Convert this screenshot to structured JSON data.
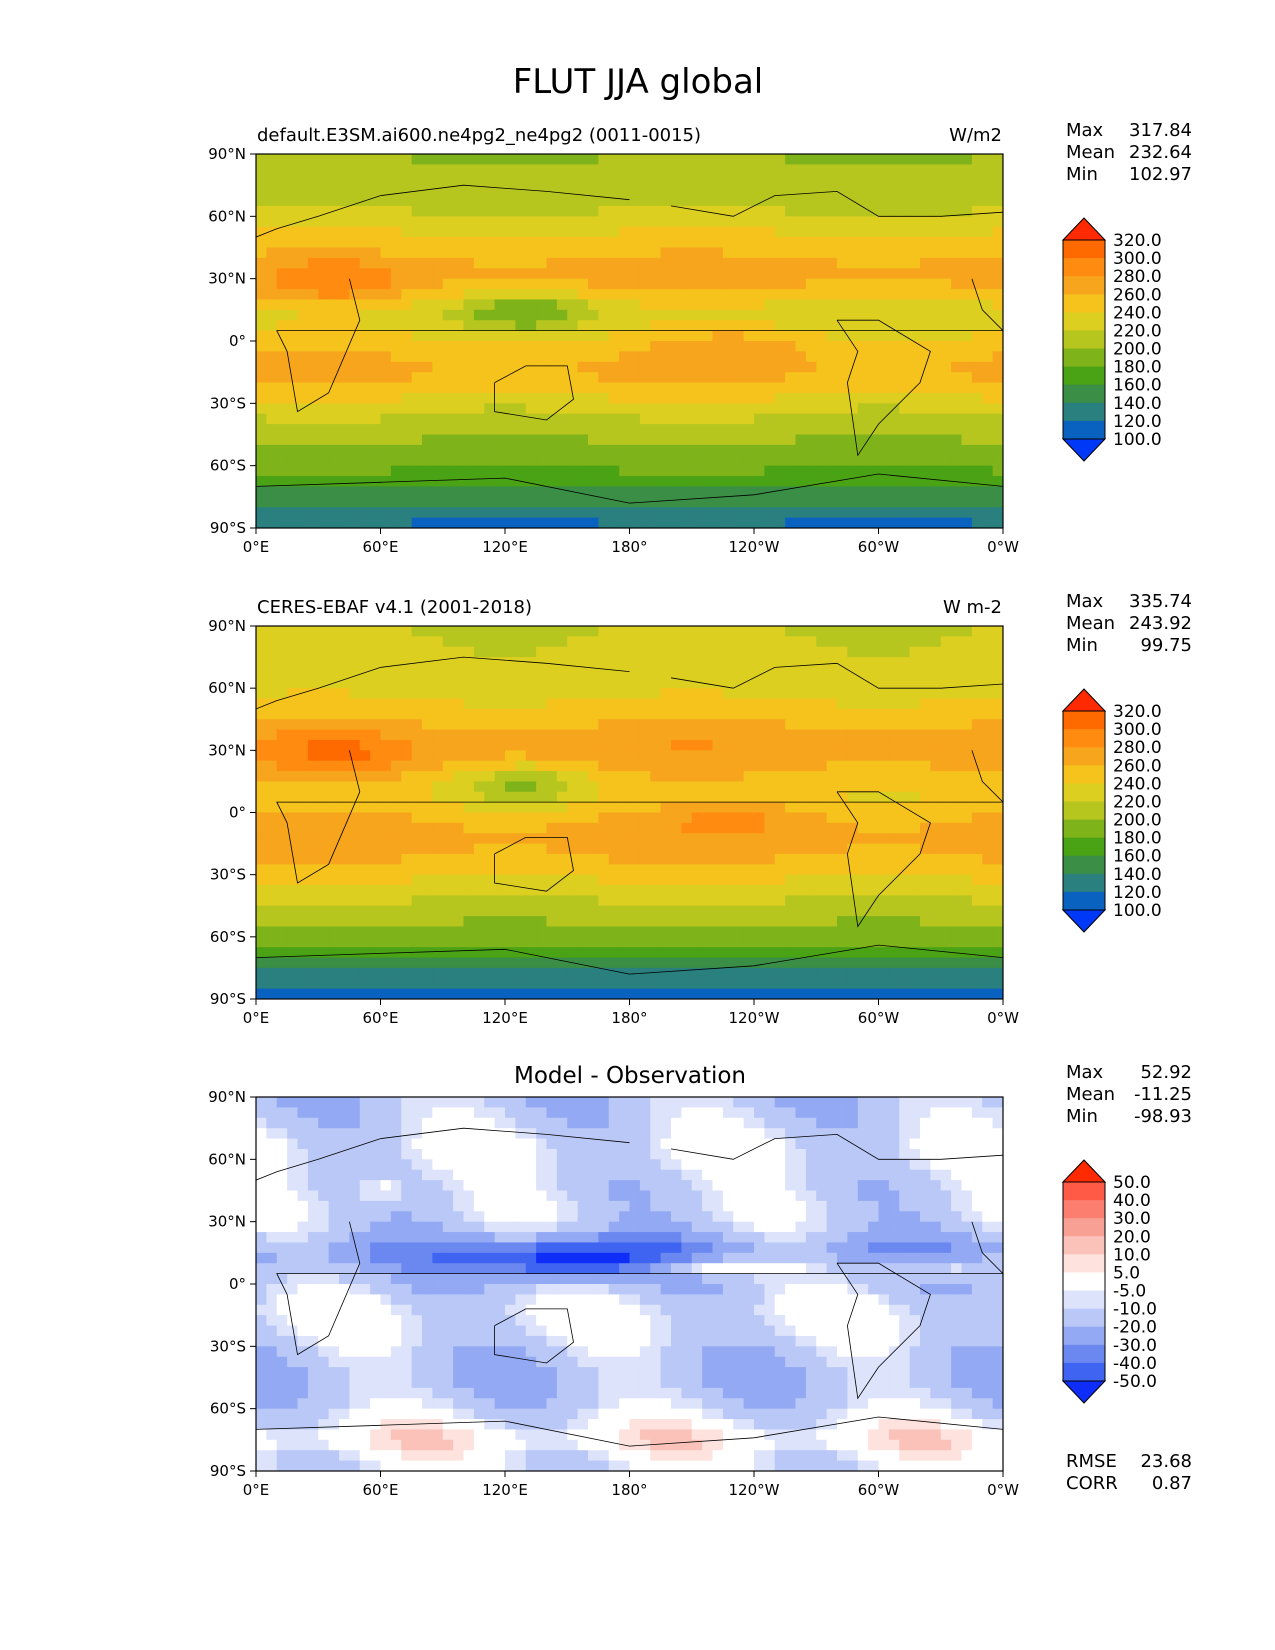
{
  "figure_title": "FLUT JJA global",
  "x_tick_labels": [
    "0°E",
    "60°E",
    "120°E",
    "180°",
    "120°W",
    "60°W",
    "0°W"
  ],
  "y_tick_labels": [
    "90°N",
    "60°N",
    "30°N",
    "0°",
    "30°S",
    "60°S",
    "90°S"
  ],
  "stat_labels": {
    "max": "Max",
    "mean": "Mean",
    "min": "Min",
    "rmse": "RMSE",
    "corr": "CORR"
  },
  "chart_data": [
    {
      "type": "heatmap",
      "title_left": "default.E3SM.ai600.ne4pg2_ne4pg2 (0011-0015)",
      "title_right": "W/m2",
      "stats": {
        "max": "317.84",
        "mean": "232.64",
        "min": "102.97"
      },
      "colorbar_levels": [
        "320.0",
        "300.0",
        "280.0",
        "260.0",
        "240.0",
        "220.0",
        "200.0",
        "180.0",
        "160.0",
        "140.0",
        "120.0",
        "100.0"
      ],
      "colorbar_colors": [
        "#ff2a00",
        "#ff6a00",
        "#ff8c10",
        "#f7a51c",
        "#f6c21c",
        "#dccf20",
        "#b6c61e",
        "#7fb31a",
        "#4aa215",
        "#3a8e46",
        "#2a7f7f",
        "#0a62c0",
        "#0038f8"
      ],
      "values_by_lat": {
        "lat": [
          85,
          75,
          65,
          55,
          45,
          35,
          25,
          15,
          5,
          -5,
          -15,
          -25,
          -35,
          -45,
          -55,
          -65,
          -75,
          -85
        ],
        "typical_flut": [
          200,
          205,
          215,
          235,
          250,
          270,
          260,
          230,
          235,
          255,
          265,
          245,
          220,
          205,
          190,
          175,
          150,
          120
        ]
      },
      "xlim": [
        0,
        360
      ],
      "ylim": [
        -90,
        90
      ]
    },
    {
      "type": "heatmap",
      "title_left": "CERES-EBAF v4.1 (2001-2018)",
      "title_right": "W m-2",
      "stats": {
        "max": "335.74",
        "mean": "243.92",
        "min": "99.75"
      },
      "colorbar_levels": [
        "320.0",
        "300.0",
        "280.0",
        "260.0",
        "240.0",
        "220.0",
        "200.0",
        "180.0",
        "160.0",
        "140.0",
        "120.0",
        "100.0"
      ],
      "colorbar_colors": [
        "#ff2a00",
        "#ff6a00",
        "#ff8c10",
        "#f7a51c",
        "#f6c21c",
        "#dccf20",
        "#b6c61e",
        "#7fb31a",
        "#4aa215",
        "#3a8e46",
        "#2a7f7f",
        "#0a62c0",
        "#0038f8"
      ],
      "values_by_lat": {
        "lat": [
          85,
          75,
          65,
          55,
          45,
          35,
          25,
          15,
          5,
          -5,
          -15,
          -25,
          -35,
          -45,
          -55,
          -65,
          -75,
          -85
        ],
        "typical_flut": [
          220,
          222,
          225,
          240,
          255,
          275,
          270,
          250,
          245,
          265,
          270,
          255,
          235,
          215,
          200,
          180,
          140,
          115
        ]
      },
      "xlim": [
        0,
        360
      ],
      "ylim": [
        -90,
        90
      ]
    },
    {
      "type": "heatmap",
      "title_center": "Model - Observation",
      "stats": {
        "max": "52.92",
        "mean": "-11.25",
        "min": "-98.93",
        "rmse": "23.68",
        "corr": "0.87"
      },
      "colorbar_levels": [
        "50.0",
        "40.0",
        "30.0",
        "20.0",
        "10.0",
        "5.0",
        "-5.0",
        "-10.0",
        "-20.0",
        "-30.0",
        "-40.0",
        "-50.0"
      ],
      "colorbar_colors": [
        "#ff2a00",
        "#ff5a45",
        "#fb7e6e",
        "#f9a095",
        "#fbc2ba",
        "#fde2de",
        "#ffffff",
        "#dce3fb",
        "#b9c8f7",
        "#93a9f3",
        "#6b88f0",
        "#3f64f2",
        "#0e2ef8"
      ],
      "values_by_lat": {
        "lat": [
          85,
          75,
          65,
          55,
          45,
          35,
          25,
          15,
          5,
          -5,
          -15,
          -25,
          -35,
          -45,
          -55,
          -65,
          -75,
          -85
        ],
        "typical_diff": [
          -15,
          -10,
          -5,
          -8,
          -12,
          -10,
          -15,
          -30,
          -20,
          -10,
          -5,
          -8,
          -15,
          -18,
          -15,
          -5,
          5,
          -5
        ]
      },
      "xlim": [
        0,
        360
      ],
      "ylim": [
        -90,
        90
      ]
    }
  ]
}
